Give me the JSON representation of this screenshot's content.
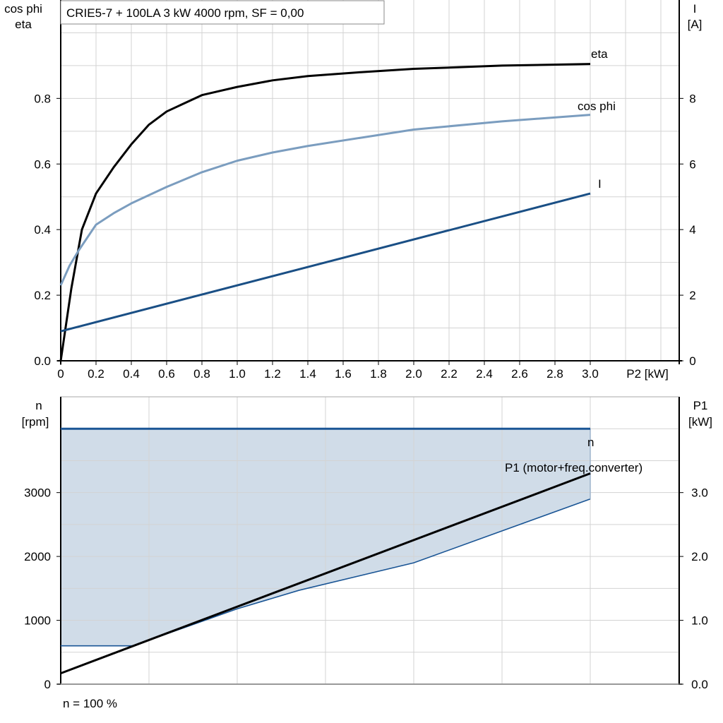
{
  "colors": {
    "eta": "#000000",
    "cos_phi": "#7b9dbf",
    "I": "#1a4f85",
    "n": "#1a5595",
    "n_fill": "#d0dce8",
    "P1": "#000000",
    "grid": "#d3d3d3"
  },
  "chart_data": [
    {
      "type": "line",
      "title": "CRIE5-7 + 100LA   3 kW   4000 rpm, SF = 0,00",
      "xlabel": "P2 [kW]",
      "ylabel_left": [
        "cos phi",
        "eta"
      ],
      "ylabel_right": [
        "I",
        "[A]"
      ],
      "xlim": [
        0,
        3.5
      ],
      "ylim_left": [
        0,
        1.1
      ],
      "ylim_right": [
        0,
        11
      ],
      "xticks": [
        "0",
        "0.2",
        "0.4",
        "0.6",
        "0.8",
        "1.0",
        "1.2",
        "1.4",
        "1.6",
        "1.8",
        "2.0",
        "2.2",
        "2.4",
        "2.6",
        "2.8",
        "3.0"
      ],
      "yticks_left": [
        "0.0",
        "0.2",
        "0.4",
        "0.6",
        "0.8"
      ],
      "yticks_right": [
        "0",
        "2",
        "4",
        "6",
        "8"
      ],
      "grid": true,
      "series": [
        {
          "name": "eta",
          "axis": "left",
          "x": [
            0,
            0.06,
            0.12,
            0.2,
            0.3,
            0.4,
            0.5,
            0.6,
            0.8,
            1.0,
            1.2,
            1.4,
            1.7,
            2.0,
            2.5,
            3.0
          ],
          "y": [
            0,
            0.22,
            0.4,
            0.51,
            0.59,
            0.66,
            0.72,
            0.76,
            0.81,
            0.835,
            0.855,
            0.868,
            0.88,
            0.89,
            0.9,
            0.905
          ]
        },
        {
          "name": "cos phi",
          "axis": "left",
          "x": [
            0,
            0.05,
            0.1,
            0.2,
            0.3,
            0.4,
            0.6,
            0.8,
            1.0,
            1.2,
            1.4,
            1.7,
            2.0,
            2.5,
            3.0
          ],
          "y": [
            0.23,
            0.29,
            0.335,
            0.415,
            0.45,
            0.48,
            0.53,
            0.575,
            0.61,
            0.635,
            0.655,
            0.68,
            0.705,
            0.73,
            0.75
          ]
        },
        {
          "name": "I",
          "axis": "right",
          "x": [
            0,
            3.0
          ],
          "y": [
            0.9,
            5.1
          ]
        }
      ]
    },
    {
      "type": "line",
      "xlim": [
        0,
        3.5
      ],
      "ylim_left": [
        0,
        4500
      ],
      "ylim_right": [
        0,
        4.5
      ],
      "ylabel_left": [
        "n",
        "[rpm]"
      ],
      "ylabel_right": [
        "P1",
        "[kW]"
      ],
      "yticks_left": [
        "0",
        "1000",
        "2000",
        "3000"
      ],
      "yticks_right": [
        "0.0",
        "1.0",
        "2.0",
        "3.0"
      ],
      "grid": true,
      "footnote": "n = 100 %",
      "series": [
        {
          "name": "n",
          "axis": "left",
          "x": [
            0,
            3.0
          ],
          "y": [
            4000,
            4000
          ]
        },
        {
          "name": "P1 (motor+freq.converter)",
          "axis": "right",
          "x": [
            0,
            3.0
          ],
          "y": [
            0.17,
            3.3
          ]
        },
        {
          "axis": "right",
          "x": [
            0,
            0.41,
            1.0,
            1.35,
            2.0,
            3.0
          ],
          "y": [
            0.6,
            0.6,
            1.18,
            1.47,
            1.9,
            2.9
          ]
        }
      ]
    }
  ]
}
